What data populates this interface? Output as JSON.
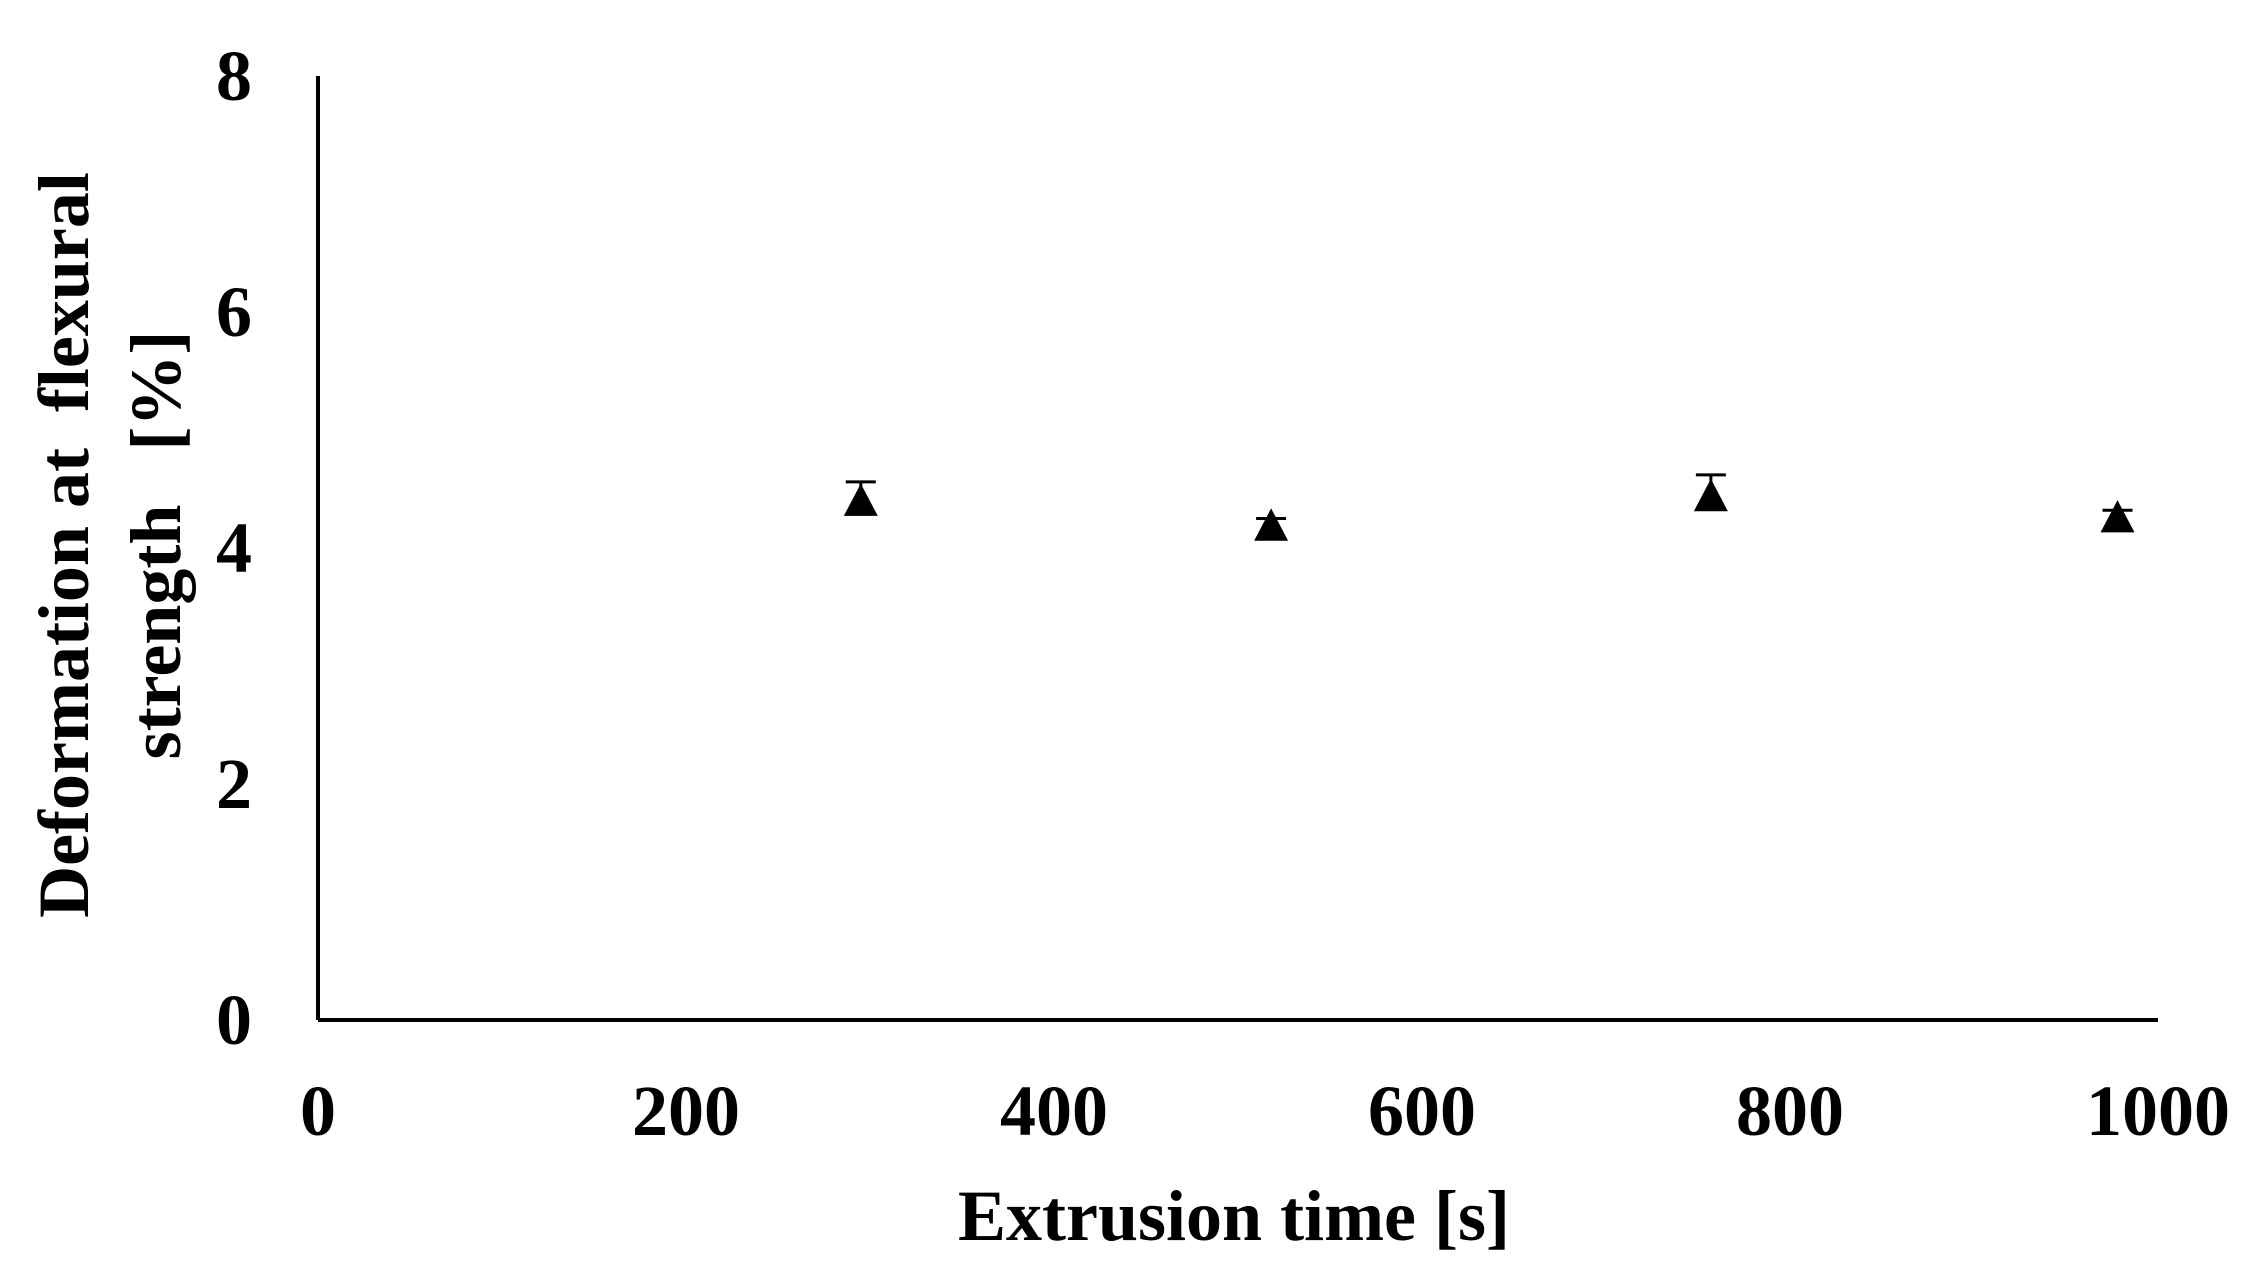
{
  "chart_data": {
    "type": "scatter",
    "title": "",
    "xlabel": "Extrusion time [s]",
    "ylabel_lines": [
      "Deformation at  flexural",
      "strength   [%]"
    ],
    "xlim": [
      0,
      1000
    ],
    "ylim": [
      0,
      8
    ],
    "x_ticks": [
      0,
      200,
      400,
      600,
      800,
      1000
    ],
    "y_ticks": [
      0,
      2,
      4,
      6,
      8
    ],
    "grid": false,
    "legend": "none",
    "marker": "triangle",
    "color": "#000000",
    "points": [
      {
        "x": 295,
        "y": 4.38,
        "err": 0.18
      },
      {
        "x": 518,
        "y": 4.17,
        "err": 0.08
      },
      {
        "x": 757,
        "y": 4.42,
        "err": 0.2
      },
      {
        "x": 978,
        "y": 4.24,
        "err": 0.08
      }
    ]
  }
}
